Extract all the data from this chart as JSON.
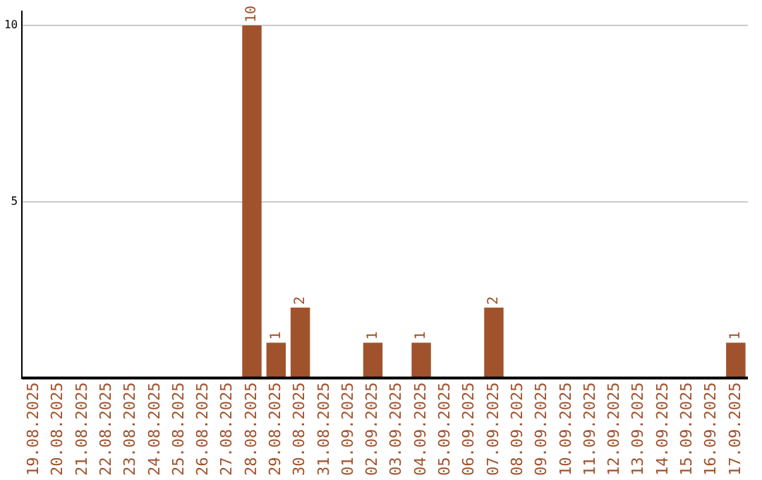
{
  "chart_data": {
    "type": "bar",
    "categories": [
      "19.08.2025",
      "20.08.2025",
      "21.08.2025",
      "22.08.2025",
      "23.08.2025",
      "24.08.2025",
      "25.08.2025",
      "26.08.2025",
      "27.08.2025",
      "28.08.2025",
      "29.08.2025",
      "30.08.2025",
      "31.08.2025",
      "01.09.2025",
      "02.09.2025",
      "03.09.2025",
      "04.09.2025",
      "05.09.2025",
      "06.09.2025",
      "07.09.2025",
      "08.09.2025",
      "09.09.2025",
      "10.09.2025",
      "11.09.2025",
      "12.09.2025",
      "13.09.2025",
      "14.09.2025",
      "15.09.2025",
      "16.09.2025",
      "17.09.2025"
    ],
    "values": [
      0,
      0,
      0,
      0,
      0,
      0,
      0,
      0,
      0,
      10,
      1,
      2,
      0,
      0,
      1,
      0,
      1,
      0,
      0,
      2,
      0,
      0,
      0,
      0,
      0,
      0,
      0,
      0,
      0,
      1
    ],
    "value_labels": [
      null,
      null,
      null,
      null,
      null,
      null,
      null,
      null,
      null,
      "10",
      "1",
      "2",
      null,
      null,
      "1",
      null,
      "1",
      null,
      null,
      "2",
      null,
      null,
      null,
      null,
      null,
      null,
      null,
      null,
      null,
      "1"
    ],
    "color": "#a0522d",
    "ylim": [
      0,
      10.4
    ],
    "yticks": [
      5,
      10
    ],
    "grid": "y",
    "legend": false
  }
}
